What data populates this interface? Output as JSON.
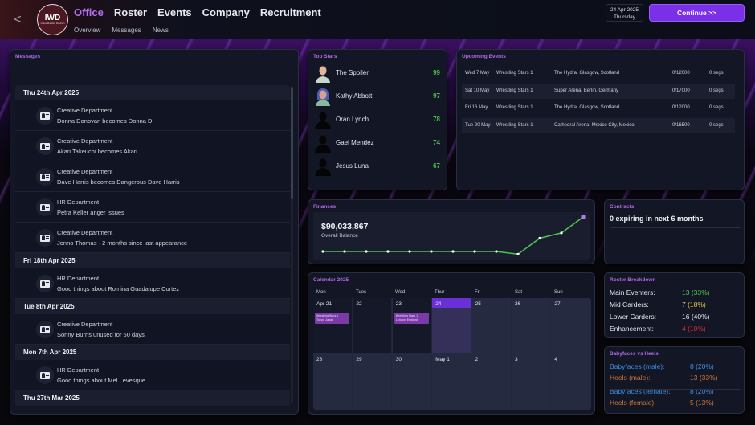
{
  "header": {
    "back_label": "<",
    "logo": {
      "abbr": "IWD",
      "subtitle": "Insane Wrestling Dominion"
    },
    "nav": [
      {
        "label": "Office",
        "active": true
      },
      {
        "label": "Roster",
        "active": false
      },
      {
        "label": "Events",
        "active": false
      },
      {
        "label": "Company",
        "active": false
      },
      {
        "label": "Recruitment",
        "active": false
      }
    ],
    "subnav": [
      {
        "label": "Overview"
      },
      {
        "label": "Messages"
      },
      {
        "label": "News"
      }
    ],
    "date": {
      "line1": "24 Apr 2025",
      "line2": "Thursday"
    },
    "continue_label": "Continue >>"
  },
  "messages": {
    "title": "Messages",
    "groups": [
      {
        "date": "Thu 24th Apr 2025",
        "items": [
          {
            "dept": "Creative Department",
            "text": "Donna Donovan becomes Donna D"
          },
          {
            "dept": "Creative Department",
            "text": "Akari Takeuchi becomes Akari"
          },
          {
            "dept": "Creative Department",
            "text": "Dave Harris becomes Dangerous Dave Harris"
          },
          {
            "dept": "HR Department",
            "text": "Petra Keller anger issues"
          },
          {
            "dept": "Creative Department",
            "text": "Jonno Thomas - 2 months since last appearance"
          }
        ]
      },
      {
        "date": "Fri 18th Apr 2025",
        "items": [
          {
            "dept": "HR Department",
            "text": "Good things about Romina Guadalupe Cortez"
          }
        ]
      },
      {
        "date": "Tue 8th Apr 2025",
        "items": [
          {
            "dept": "Creative Department",
            "text": "Sonny Burns unused for 60 days"
          }
        ]
      },
      {
        "date": "Mon 7th Apr 2025",
        "items": [
          {
            "dept": "HR Department",
            "text": "Good things about Mel Levesque"
          }
        ]
      },
      {
        "date": "Thu 27th Mar 2025",
        "items": []
      }
    ]
  },
  "top_stars": {
    "title": "Top Stars",
    "items": [
      {
        "name": "The Spoiler",
        "rating": "99",
        "avatar": "face-male"
      },
      {
        "name": "Kathy Abbott",
        "rating": "97",
        "avatar": "face-female-blue-hair"
      },
      {
        "name": "Oran Lynch",
        "rating": "78",
        "avatar": "silhouette"
      },
      {
        "name": "Gael Mendez",
        "rating": "74",
        "avatar": "silhouette"
      },
      {
        "name": "Jesus Luna",
        "rating": "67",
        "avatar": "silhouette"
      }
    ]
  },
  "upcoming_events": {
    "title": "Upcoming Events",
    "rows": [
      {
        "date": "Wed 7 May",
        "show": "Wrestling Stars 1",
        "venue": "The Hydra, Glasgow, Scotland",
        "attendance": "0/12000",
        "segs": "0 segs"
      },
      {
        "date": "Sat 10 May",
        "show": "Wrestling Stars 1",
        "venue": "Super Arena, Berlin, Germany",
        "attendance": "0/17000",
        "segs": "0 segs"
      },
      {
        "date": "Fri 16 May",
        "show": "Wrestling Stars 1",
        "venue": "The Hydra, Glasgow, Scotland",
        "attendance": "0/12000",
        "segs": "0 segs"
      },
      {
        "date": "Tue 20 May",
        "show": "Wrestling Stars 1",
        "venue": "Cathedral Arena, Mexico City, Mexico",
        "attendance": "0/16500",
        "segs": "0 segs"
      }
    ]
  },
  "finances": {
    "title": "Finances",
    "balance": "$90,033,867",
    "balance_label": "Overall Balance",
    "line_color": "#4ec24e",
    "trend_points": [
      0,
      0,
      0,
      0,
      0,
      0,
      0,
      0,
      0,
      -1,
      5,
      7,
      13
    ]
  },
  "contracts": {
    "title": "Contracts",
    "summary": "0 expiring in next 6 months"
  },
  "calendar": {
    "title": "Calendar 2025",
    "weekdays": [
      "Mon",
      "Tues",
      "Wed",
      "Thur",
      "Fri",
      "Sat",
      "Sun"
    ],
    "weeks": [
      [
        {
          "label": "Apr 21",
          "past": true,
          "event": {
            "line1": "Wrestling Stars 1",
            "line2": "Tokyo, Japan"
          }
        },
        {
          "label": "22",
          "past": true
        },
        {
          "label": "23",
          "past": true,
          "event": {
            "line1": "Wrestling Stars 1",
            "line2": "London, England"
          }
        },
        {
          "label": "24",
          "today": true
        },
        {
          "label": "25"
        },
        {
          "label": "26"
        },
        {
          "label": "27"
        }
      ],
      [
        {
          "label": "28"
        },
        {
          "label": "29"
        },
        {
          "label": "30"
        },
        {
          "label": "May 1"
        },
        {
          "label": "2"
        },
        {
          "label": "3"
        },
        {
          "label": "4"
        }
      ]
    ]
  },
  "roster_breakdown": {
    "title": "Roster Breakdown",
    "rows": [
      {
        "label": "Main Eventers:",
        "value": "13 (33%)",
        "color": "#4ec24e"
      },
      {
        "label": "Mid Carders:",
        "value": "7 (18%)",
        "color": "#e0c84a"
      },
      {
        "label": "Lower Carders:",
        "value": "16 (40%)",
        "color": "#e6e6ee"
      },
      {
        "label": "Enhancement:",
        "value": "4 (10%)",
        "color": "#d03030"
      }
    ]
  },
  "babyfaces_heels": {
    "title": "Babyfaces vs Heels",
    "rows": [
      {
        "label": "Babyfaces (male):",
        "value": "8 (20%)",
        "color": "#3f8ee0"
      },
      {
        "label": "Heels (male):",
        "value": "13 (33%)",
        "color": "#d0783a"
      },
      {
        "label": "Babyfaces (female):",
        "value": "8 (20%)",
        "color": "#3f8ee0"
      },
      {
        "label": "Heels (female):",
        "value": "5 (13%)",
        "color": "#d0783a"
      }
    ]
  }
}
